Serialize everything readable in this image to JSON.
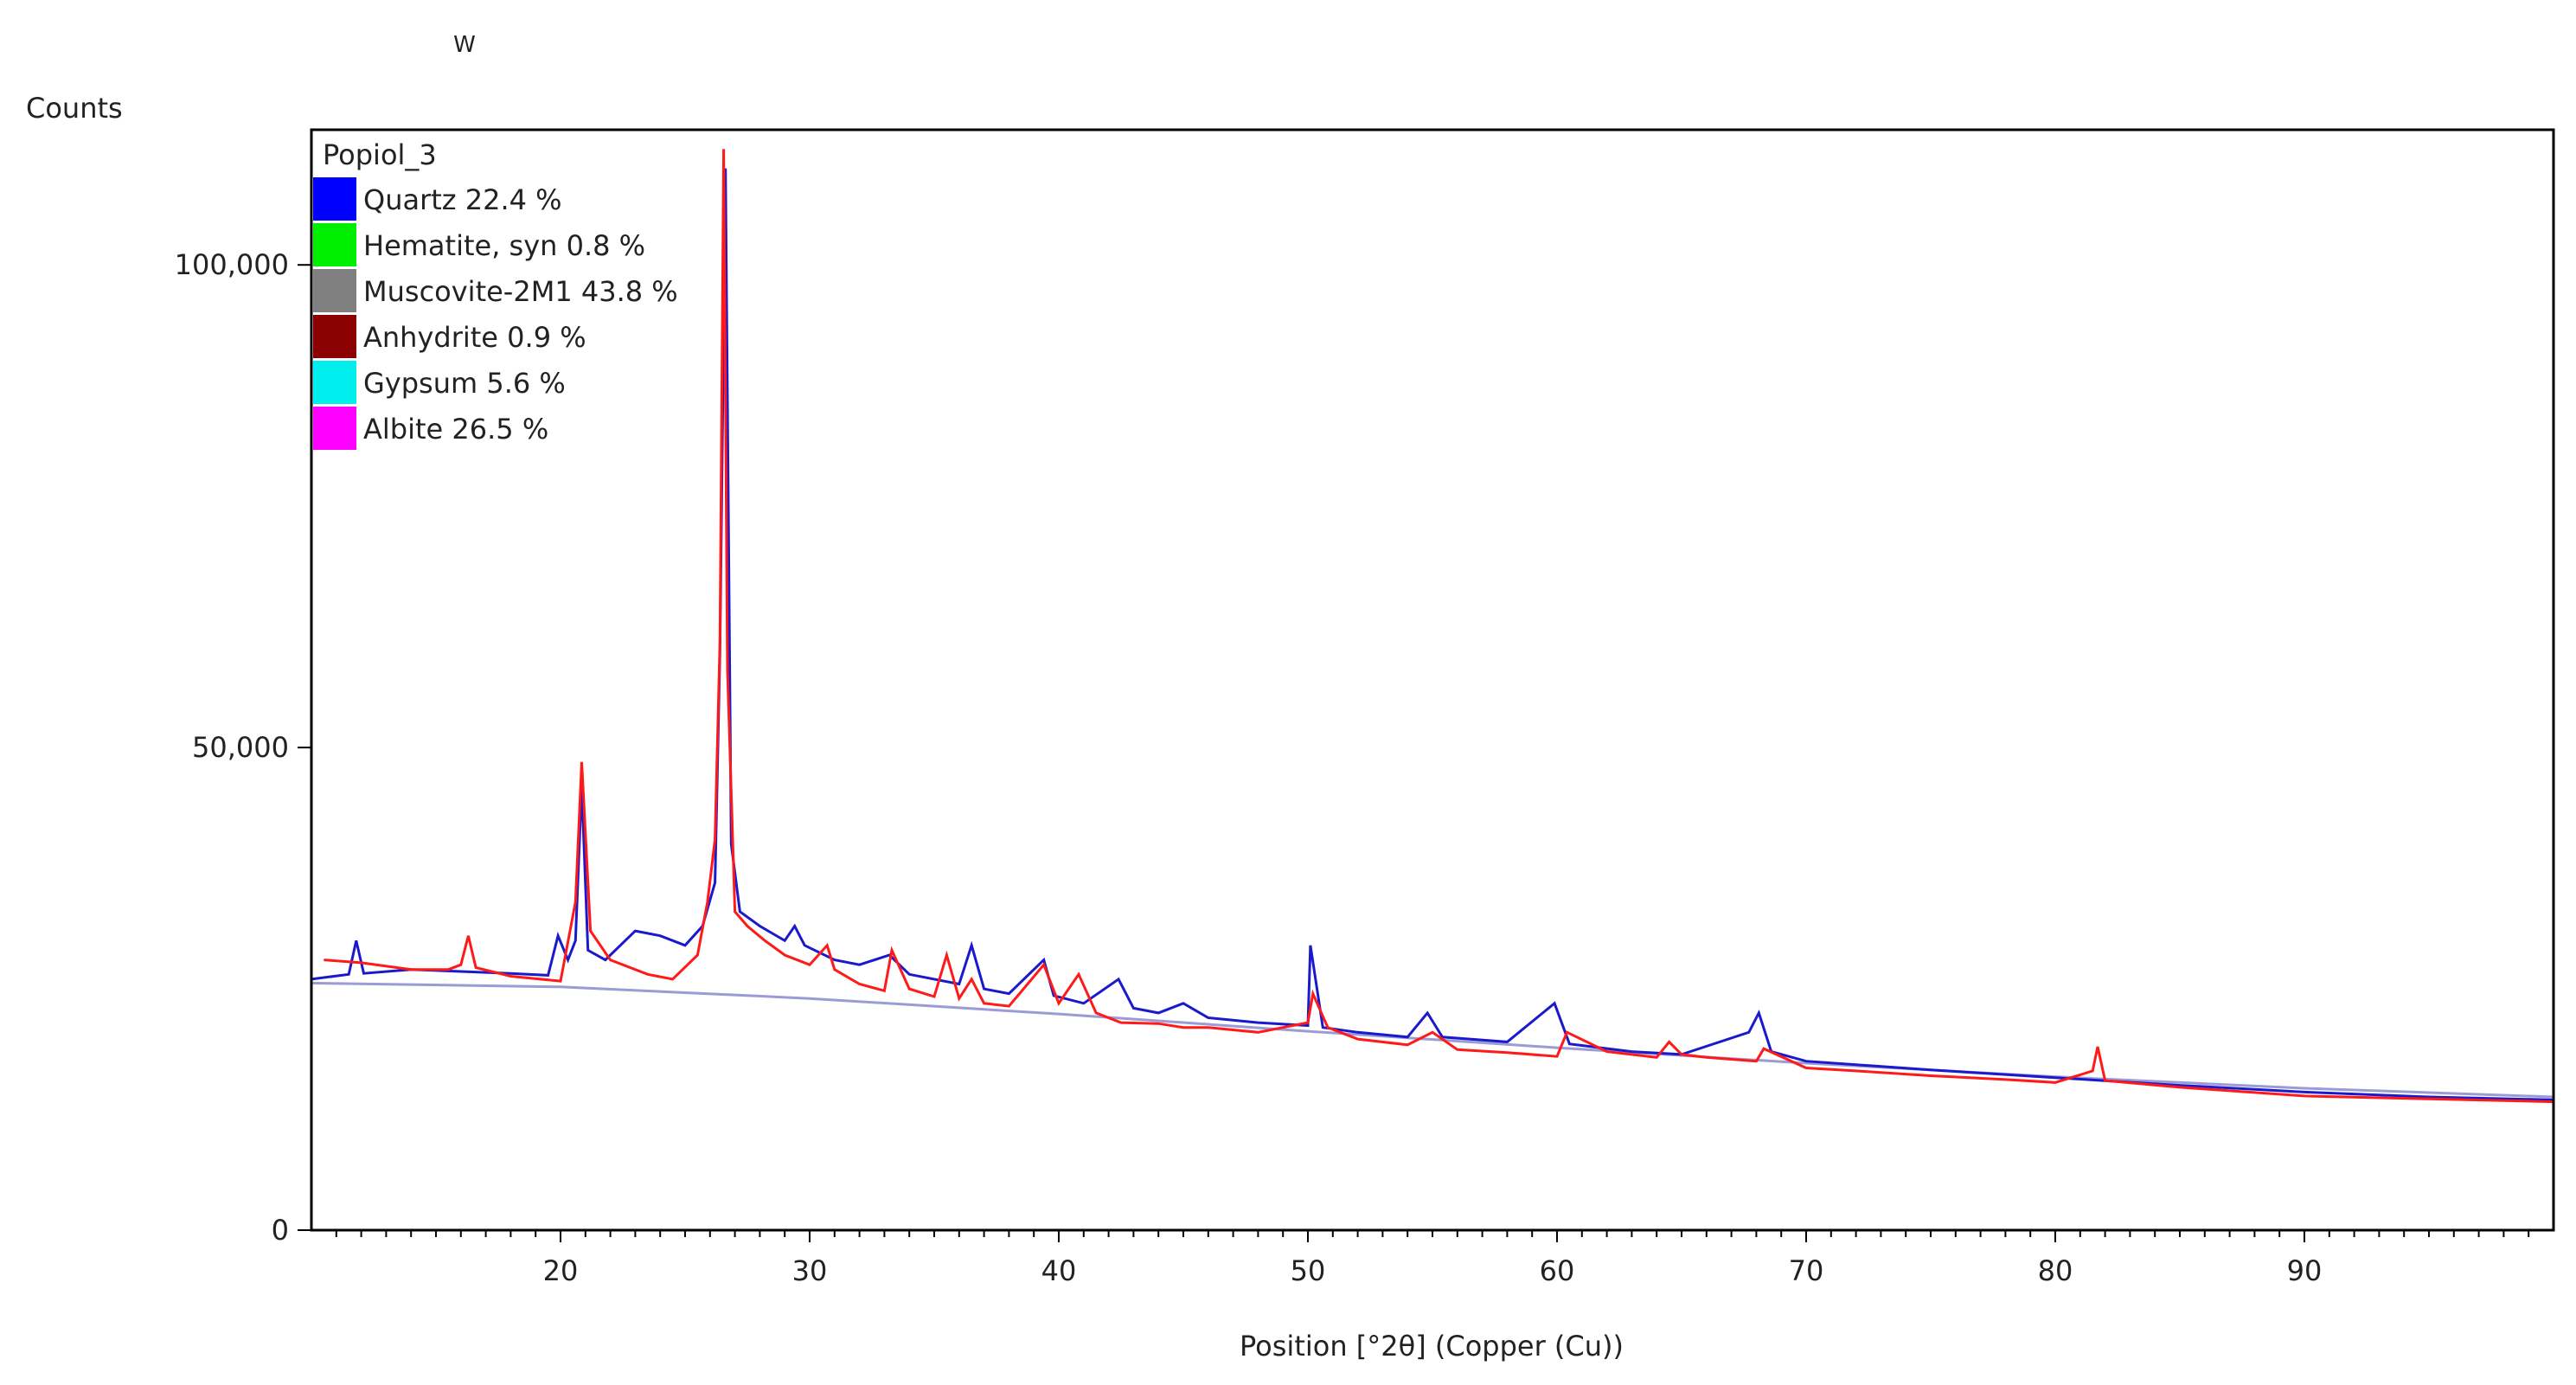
{
  "chart_data": {
    "type": "line",
    "title": "",
    "ylabel": "Counts",
    "xlabel": "Position [°2θ] (Copper (Cu))",
    "xlim": [
      10,
      100
    ],
    "ylim": [
      0,
      114000
    ],
    "x_ticks": [
      20,
      30,
      40,
      50,
      60,
      70,
      80,
      90
    ],
    "x_tick_labels": [
      "20",
      "30",
      "40",
      "50",
      "60",
      "70",
      "80",
      "90"
    ],
    "y_ticks": [
      0,
      50000,
      100000
    ],
    "y_tick_labels": [
      "0",
      "50,000",
      "100,000"
    ],
    "legend": {
      "title": "Popiol_3",
      "placement": "top-left",
      "entries": [
        {
          "label": "Quartz 22.4 %",
          "color": "#0000ff"
        },
        {
          "label": "Hematite, syn 0.8 %",
          "color": "#00ee00"
        },
        {
          "label": "Muscovite-2M1 43.8 %",
          "color": "#808080"
        },
        {
          "label": "Anhydrite 0.9 %",
          "color": "#8b0000"
        },
        {
          "label": "Gypsum 5.6 %",
          "color": "#00eeee"
        },
        {
          "label": "Albite 26.5 %",
          "color": "#ff00ff"
        }
      ]
    },
    "top_annotation": "W",
    "series": [
      {
        "name": "Observed",
        "color": "#ff1a1a",
        "x": [
          10.5,
          12,
          14,
          15.5,
          16,
          16.3,
          16.6,
          18,
          20,
          20.6,
          20.85,
          21.2,
          22,
          23.5,
          24.5,
          25.5,
          25.9,
          26.2,
          26.4,
          26.55,
          26.7,
          27,
          27.5,
          28.2,
          29,
          30,
          30.7,
          31,
          32,
          33,
          33.3,
          34,
          35,
          35.5,
          36,
          36.5,
          37,
          38,
          39.4,
          40,
          40.8,
          41.5,
          42.5,
          44,
          45,
          46,
          48,
          50,
          50.2,
          50.8,
          52,
          54,
          55,
          56,
          58,
          60,
          60.4,
          62,
          64,
          64.5,
          65,
          66,
          67,
          68,
          68.3,
          70,
          72,
          75,
          78,
          80,
          81.5,
          81.7,
          82,
          85,
          90,
          95,
          100
        ],
        "y": [
          28000,
          27700,
          27000,
          27000,
          27500,
          30500,
          27200,
          26300,
          25800,
          34000,
          48500,
          31000,
          28000,
          26500,
          26000,
          28500,
          34000,
          40500,
          61000,
          112000,
          58000,
          33000,
          31500,
          30000,
          28500,
          27500,
          29500,
          27000,
          25500,
          24800,
          29000,
          25000,
          24200,
          28500,
          24000,
          26000,
          23500,
          23200,
          27500,
          23500,
          26500,
          22500,
          21500,
          21400,
          21000,
          21000,
          20500,
          21500,
          24500,
          21000,
          19800,
          19200,
          20500,
          18700,
          18400,
          18000,
          20500,
          18500,
          17900,
          19500,
          18200,
          17900,
          17700,
          17500,
          18800,
          16800,
          16500,
          16000,
          15600,
          15300,
          16500,
          19000,
          15500,
          14800,
          13900,
          13600,
          13300
        ]
      },
      {
        "name": "Calculated",
        "color": "#1a1acc",
        "x": [
          10,
          11.5,
          11.8,
          12.1,
          14,
          18,
          19.5,
          19.9,
          20.3,
          20.6,
          20.85,
          21.1,
          21.8,
          23,
          24,
          25,
          25.7,
          26.2,
          26.4,
          26.62,
          26.85,
          27.2,
          28,
          29,
          29.4,
          29.8,
          31,
          32,
          33.2,
          34,
          36,
          36.5,
          37,
          38,
          39.4,
          39.8,
          41,
          42.4,
          43,
          44,
          45,
          46,
          48,
          50,
          50.1,
          50.6,
          52,
          54,
          54.8,
          55.4,
          58,
          59.9,
          60.5,
          63,
          65,
          67.7,
          68.1,
          68.6,
          70,
          75,
          80,
          85,
          90,
          95,
          100
        ],
        "y": [
          26000,
          26500,
          30000,
          26600,
          27000,
          26600,
          26400,
          30500,
          28000,
          30000,
          46000,
          29000,
          28000,
          31000,
          30500,
          29500,
          31500,
          36000,
          60000,
          110000,
          40000,
          33000,
          31500,
          30000,
          31500,
          29500,
          28000,
          27500,
          28500,
          26500,
          25500,
          29500,
          25000,
          24500,
          28000,
          24300,
          23500,
          26000,
          23000,
          22500,
          23500,
          22000,
          21500,
          21200,
          29500,
          21000,
          20500,
          20000,
          22500,
          20000,
          19500,
          23500,
          19300,
          18500,
          18200,
          20500,
          22500,
          18500,
          17500,
          16600,
          15800,
          15000,
          14300,
          13800,
          13500
        ]
      },
      {
        "name": "Background",
        "color": "#9b9bd8",
        "x": [
          10,
          20,
          30,
          40,
          50,
          60,
          70,
          80,
          90,
          100
        ],
        "y": [
          25600,
          25200,
          24000,
          22400,
          20600,
          18900,
          17300,
          15900,
          14700,
          13800
        ]
      }
    ]
  }
}
